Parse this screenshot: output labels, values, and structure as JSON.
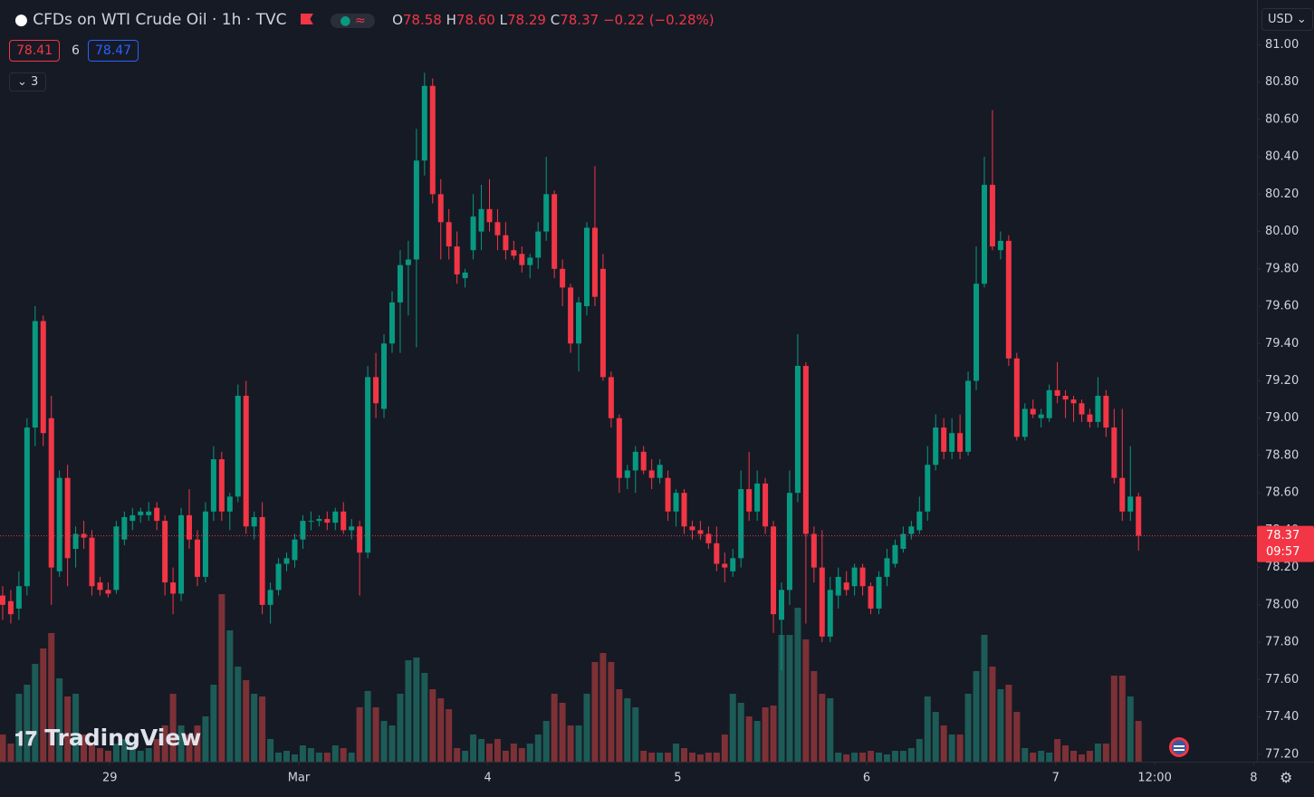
{
  "chart_data": {
    "type": "candlestick",
    "title": "CFDs on WTI Crude Oil · 1h · TVC",
    "ohlc": {
      "labels": [
        "O",
        "H",
        "L",
        "C"
      ],
      "values": [
        "78.58",
        "78.60",
        "78.29",
        "78.37"
      ]
    },
    "change": "−0.22 (−0.28%)",
    "bid": "78.41",
    "spread": "6",
    "ask": "78.47",
    "indicators_count": "3",
    "currency": "USD",
    "last_price_label": "78.37",
    "countdown": "09:57",
    "watermark": "TradingView",
    "up_color": "#089981",
    "down_color": "#f23645",
    "volume_up_color": "#1d5b57",
    "volume_down_color": "#7c3136",
    "open": [
      78.05,
      78.02,
      77.98,
      78.1,
      78.95,
      79.52,
      79.0,
      78.18,
      78.68,
      78.3,
      78.38,
      78.36,
      78.12,
      78.08,
      78.08,
      78.35,
      78.45,
      78.48,
      78.48,
      78.52,
      78.45,
      78.12,
      78.06,
      78.48,
      78.35,
      78.15,
      78.5,
      78.78,
      78.5,
      78.58,
      79.12,
      78.42,
      78.47,
      78.0,
      78.08,
      78.22,
      78.24,
      78.35,
      78.45,
      78.45,
      78.46,
      78.44,
      78.5,
      78.4,
      78.42,
      78.28,
      79.22,
      79.05,
      79.4,
      79.62,
      79.82,
      79.85,
      80.38,
      80.78,
      80.2,
      80.05,
      79.92,
      79.75,
      79.9,
      80.0,
      80.12,
      80.05,
      79.98,
      79.9,
      79.88,
      79.82,
      79.86,
      80.0,
      80.2,
      79.8,
      79.7,
      79.4,
      79.6,
      80.02,
      79.8,
      79.22,
      79.0,
      78.68,
      78.72,
      78.82,
      78.72,
      78.68,
      78.68,
      78.5,
      78.6,
      78.42,
      78.4,
      78.38,
      78.33,
      78.22,
      78.18,
      78.25,
      78.62,
      78.5,
      78.65,
      78.42,
      77.92,
      78.08,
      78.6,
      79.28,
      78.38,
      78.2,
      77.83,
      78.05,
      78.12,
      78.1,
      78.2,
      78.1,
      77.98,
      78.15,
      78.22,
      78.3,
      78.38,
      78.4,
      78.5,
      78.75,
      78.95,
      78.82,
      78.92,
      78.82,
      79.2,
      79.72,
      80.25,
      79.9,
      79.95,
      79.32,
      78.9,
      79.05,
      79.0,
      79.0,
      79.15,
      79.12,
      79.1,
      79.08,
      79.02,
      78.98,
      79.12,
      78.95,
      78.68,
      78.5,
      78.58
    ],
    "high": [
      78.1,
      78.08,
      78.18,
      79.0,
      79.6,
      79.55,
      79.12,
      78.72,
      78.75,
      78.42,
      78.45,
      78.4,
      78.15,
      78.12,
      78.45,
      78.5,
      78.52,
      78.52,
      78.55,
      78.55,
      78.48,
      78.2,
      78.52,
      78.62,
      78.4,
      78.55,
      78.85,
      78.82,
      78.6,
      79.18,
      79.2,
      78.5,
      78.55,
      78.12,
      78.25,
      78.28,
      78.38,
      78.48,
      78.5,
      78.48,
      78.5,
      78.52,
      78.55,
      78.46,
      78.45,
      79.28,
      79.35,
      79.45,
      79.68,
      79.9,
      79.95,
      80.55,
      80.85,
      80.82,
      80.28,
      80.12,
      80.0,
      79.8,
      80.2,
      80.25,
      80.28,
      80.12,
      80.05,
      79.95,
      79.92,
      79.88,
      80.05,
      80.4,
      80.22,
      79.85,
      79.72,
      79.65,
      80.05,
      80.35,
      79.88,
      79.25,
      79.02,
      78.75,
      78.85,
      78.85,
      78.78,
      78.78,
      78.72,
      78.62,
      78.62,
      78.45,
      78.45,
      78.42,
      78.42,
      78.28,
      78.3,
      78.72,
      78.82,
      78.72,
      78.68,
      78.45,
      78.12,
      78.72,
      79.45,
      79.3,
      78.42,
      78.4,
      78.15,
      78.2,
      78.18,
      78.22,
      78.22,
      78.12,
      78.18,
      78.3,
      78.35,
      78.42,
      78.45,
      78.58,
      78.85,
      79.02,
      79.0,
      79.0,
      79.02,
      79.25,
      79.92,
      80.4,
      80.65,
      80.0,
      79.98,
      79.35,
      79.08,
      79.1,
      79.05,
      79.18,
      79.3,
      79.15,
      79.12,
      79.1,
      79.05,
      79.22,
      79.15,
      79.05,
      79.05,
      78.85,
      78.6
    ],
    "low": [
      77.92,
      77.9,
      77.92,
      78.05,
      78.85,
      78.85,
      78.0,
      78.15,
      78.1,
      78.2,
      78.3,
      78.05,
      78.05,
      78.04,
      78.06,
      78.32,
      78.4,
      78.44,
      78.45,
      78.4,
      78.05,
      77.95,
      78.02,
      78.3,
      78.1,
      78.12,
      78.45,
      78.45,
      78.4,
      78.55,
      78.38,
      78.35,
      77.95,
      77.9,
      78.05,
      78.18,
      78.2,
      78.3,
      78.4,
      78.42,
      78.4,
      78.4,
      78.38,
      78.35,
      78.05,
      78.25,
      79.0,
      79.0,
      79.35,
      79.35,
      79.55,
      79.38,
      80.3,
      80.15,
      79.85,
      79.85,
      79.72,
      79.7,
      79.85,
      79.9,
      80.0,
      79.9,
      79.85,
      79.85,
      79.78,
      79.75,
      79.8,
      79.95,
      79.75,
      79.6,
      79.35,
      79.25,
      79.55,
      79.6,
      79.2,
      78.95,
      78.6,
      78.62,
      78.6,
      78.7,
      78.62,
      78.65,
      78.45,
      78.42,
      78.38,
      78.35,
      78.35,
      78.3,
      78.18,
      78.12,
      78.15,
      78.2,
      78.45,
      78.45,
      78.38,
      77.85,
      77.65,
      78.0,
      78.55,
      77.9,
      78.12,
      77.8,
      77.8,
      77.98,
      78.05,
      78.05,
      78.05,
      77.95,
      77.95,
      78.1,
      78.2,
      78.28,
      78.35,
      78.38,
      78.45,
      78.72,
      78.78,
      78.78,
      78.78,
      78.8,
      79.15,
      79.7,
      79.9,
      79.85,
      79.28,
      78.88,
      78.88,
      79.0,
      78.95,
      78.98,
      79.08,
      79.0,
      78.98,
      78.98,
      78.95,
      78.95,
      78.9,
      78.65,
      78.45,
      78.45,
      78.29
    ],
    "close": [
      78.0,
      77.95,
      78.1,
      78.95,
      79.52,
      78.92,
      78.2,
      78.68,
      78.25,
      78.38,
      78.36,
      78.1,
      78.08,
      78.06,
      78.42,
      78.47,
      78.48,
      78.5,
      78.5,
      78.45,
      78.12,
      78.06,
      78.48,
      78.35,
      78.15,
      78.5,
      78.78,
      78.5,
      78.58,
      79.12,
      78.42,
      78.47,
      78.0,
      78.08,
      78.22,
      78.25,
      78.35,
      78.45,
      78.45,
      78.46,
      78.44,
      78.5,
      78.4,
      78.42,
      78.28,
      79.22,
      79.08,
      79.4,
      79.62,
      79.82,
      79.85,
      80.38,
      80.78,
      80.2,
      80.05,
      79.92,
      79.77,
      79.78,
      80.08,
      80.12,
      80.05,
      79.98,
      79.9,
      79.87,
      79.82,
      79.86,
      80.0,
      80.2,
      79.8,
      79.7,
      79.4,
      79.62,
      80.02,
      79.65,
      79.22,
      79.0,
      78.68,
      78.72,
      78.82,
      78.72,
      78.68,
      78.75,
      78.5,
      78.6,
      78.42,
      78.4,
      78.38,
      78.33,
      78.22,
      78.2,
      78.25,
      78.62,
      78.5,
      78.65,
      78.42,
      77.95,
      78.08,
      78.6,
      79.28,
      78.38,
      78.2,
      77.83,
      78.08,
      78.15,
      78.08,
      78.2,
      78.1,
      77.98,
      78.15,
      78.25,
      78.32,
      78.38,
      78.42,
      78.5,
      78.75,
      78.95,
      78.82,
      78.92,
      78.82,
      79.2,
      79.72,
      80.25,
      79.92,
      79.95,
      79.32,
      78.9,
      79.05,
      79.02,
      79.02,
      79.15,
      79.12,
      79.1,
      79.08,
      79.02,
      78.98,
      79.12,
      78.95,
      78.68,
      78.5,
      78.58,
      78.37
    ],
    "volume": [
      30,
      20,
      75,
      85,
      108,
      125,
      142,
      92,
      72,
      75,
      30,
      20,
      15,
      12,
      20,
      25,
      20,
      12,
      15,
      25,
      40,
      75,
      40,
      30,
      40,
      50,
      85,
      185,
      145,
      105,
      90,
      75,
      72,
      25,
      10,
      12,
      8,
      18,
      15,
      10,
      10,
      18,
      15,
      10,
      60,
      78,
      60,
      45,
      40,
      75,
      112,
      115,
      98,
      80,
      70,
      58,
      15,
      12,
      30,
      25,
      20,
      25,
      12,
      20,
      15,
      20,
      30,
      45,
      75,
      65,
      40,
      40,
      75,
      110,
      120,
      110,
      80,
      70,
      60,
      12,
      10,
      10,
      10,
      20,
      15,
      10,
      8,
      10,
      10,
      30,
      75,
      65,
      50,
      45,
      60,
      62,
      140,
      140,
      170,
      135,
      100,
      75,
      70,
      10,
      8,
      10,
      10,
      12,
      10,
      8,
      12,
      12,
      15,
      25,
      72,
      55,
      40,
      30,
      30,
      75,
      100,
      140,
      105,
      80,
      85,
      55,
      15,
      10,
      12,
      10,
      25,
      18,
      12,
      8,
      12,
      20,
      20,
      95,
      95,
      72,
      45
    ],
    "ylim": [
      77.16,
      81.24
    ],
    "yticks": [
      {
        "value": 77.2,
        "label": "77.20"
      },
      {
        "value": 77.4,
        "label": "77.40"
      },
      {
        "value": 77.6,
        "label": "77.60"
      },
      {
        "value": 77.8,
        "label": "77.80"
      },
      {
        "value": 78,
        "label": "78.00"
      },
      {
        "value": 78.2,
        "label": "78.20"
      },
      {
        "value": 78.4,
        "label": "78.40"
      },
      {
        "value": 78.6,
        "label": "78.60"
      },
      {
        "value": 78.8,
        "label": "78.80"
      },
      {
        "value": 79,
        "label": "79.00"
      },
      {
        "value": 79.2,
        "label": "79.20"
      },
      {
        "value": 79.4,
        "label": "79.40"
      },
      {
        "value": 79.6,
        "label": "79.60"
      },
      {
        "value": 79.8,
        "label": "79.80"
      },
      {
        "value": 80,
        "label": "80.00"
      },
      {
        "value": 80.2,
        "label": "80.20"
      },
      {
        "value": 80.4,
        "label": "80.40"
      },
      {
        "value": 80.6,
        "label": "80.60"
      },
      {
        "value": 80.8,
        "label": "80.80"
      },
      {
        "value": 81,
        "label": "81.00"
      }
    ],
    "xlim": [
      -0.33,
      154.6
    ],
    "xticks": [
      {
        "value": 13.2,
        "label": "29"
      },
      {
        "value": 36.5,
        "label": "Mar"
      },
      {
        "value": 59.8,
        "label": "4"
      },
      {
        "value": 83.2,
        "label": "5"
      },
      {
        "value": 106.5,
        "label": "6"
      },
      {
        "value": 129.8,
        "label": "7"
      },
      {
        "value": 142,
        "label": "12:00"
      },
      {
        "value": 154.2,
        "label": "8"
      }
    ]
  }
}
